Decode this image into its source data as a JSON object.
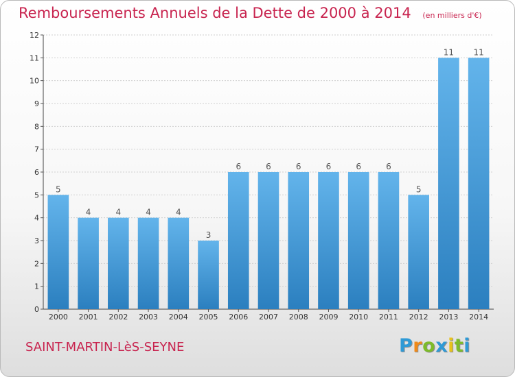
{
  "header": {
    "title": "Remboursements Annuels de la Dette de 2000 à 2014",
    "unit": "(en milliers d'€)"
  },
  "footer": {
    "commune": "SAINT-MARTIN-LèS-SEYNE",
    "logo_letters": [
      "P",
      "r",
      "o",
      "x",
      "i",
      "t",
      "i"
    ],
    "logo_colors": [
      "#2f9ad6",
      "#f08a1a",
      "#7dbb2a",
      "#2f9ad6",
      "#e8c21c",
      "#7dbb2a",
      "#2f9ad6"
    ]
  },
  "colors": {
    "bar_light": "#63b4eb",
    "bar_dark": "#2b7fbf",
    "grid": "#cfcfcf",
    "title": "#c8244f"
  },
  "chart_data": {
    "type": "bar",
    "title": "Remboursements Annuels de la Dette de 2000 à 2014",
    "subtitle": "(en milliers d'€)",
    "categories": [
      "2000",
      "2001",
      "2002",
      "2003",
      "2004",
      "2005",
      "2006",
      "2007",
      "2008",
      "2009",
      "2010",
      "2011",
      "2012",
      "2013",
      "2014"
    ],
    "values": [
      5,
      4,
      4,
      4,
      4,
      3,
      6,
      6,
      6,
      6,
      6,
      6,
      5,
      11,
      11
    ],
    "ylim": [
      0,
      12
    ],
    "yticks": [
      0,
      1,
      2,
      3,
      4,
      5,
      6,
      7,
      8,
      9,
      10,
      11,
      12
    ],
    "grid": true,
    "data_labels": true
  }
}
